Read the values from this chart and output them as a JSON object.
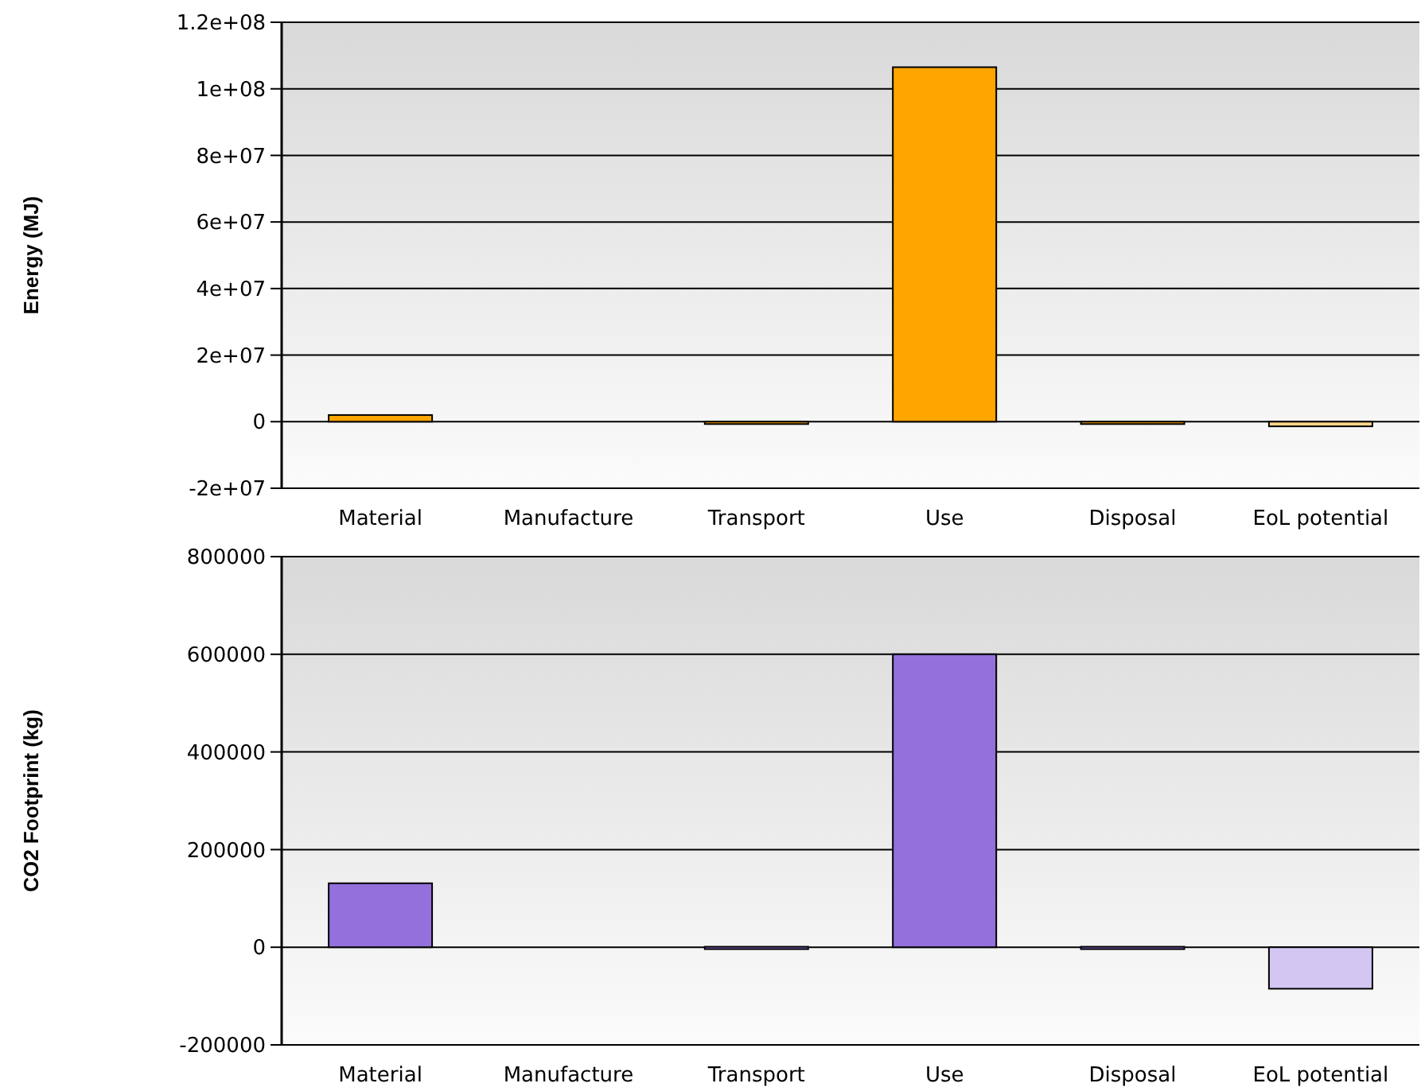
{
  "chart_data": [
    {
      "type": "bar",
      "ylabel": "Energy (MJ)",
      "categories": [
        "Material",
        "Manufacture",
        "Transport",
        "Use",
        "Disposal",
        "EoL potential"
      ],
      "values": [
        2000000,
        null,
        -500000,
        106500000,
        -500000,
        -1400000
      ],
      "colors": [
        "#ffa500",
        null,
        "#ffa500",
        "#ffa500",
        "#ffa500",
        "#ffd68a"
      ],
      "ylim": [
        -20000000,
        120000000
      ],
      "yticks": [
        {
          "value": -20000000,
          "label": "-2e+07"
        },
        0,
        {
          "value": 20000000,
          "label": "2e+07"
        },
        {
          "value": 40000000,
          "label": "4e+07"
        },
        {
          "value": 60000000,
          "label": "6e+07"
        },
        {
          "value": 80000000,
          "label": "8e+07"
        },
        {
          "value": 100000000,
          "label": "1e+08"
        },
        {
          "value": 120000000,
          "label": "1.2e+08"
        }
      ],
      "grid": "y"
    },
    {
      "type": "bar",
      "ylabel": "CO2 Footprint (kg)",
      "categories": [
        "Material",
        "Manufacture",
        "Transport",
        "Use",
        "Disposal",
        "EoL potential"
      ],
      "values": [
        131000,
        null,
        1000,
        600000,
        1000,
        -85000
      ],
      "colors": [
        "#9370db",
        null,
        "#9370db",
        "#9370db",
        "#9370db",
        "#d4c6f2"
      ],
      "ylim": [
        -200000,
        800000
      ],
      "yticks": [
        -200000,
        0,
        200000,
        400000,
        600000,
        800000
      ],
      "grid": "y"
    }
  ]
}
